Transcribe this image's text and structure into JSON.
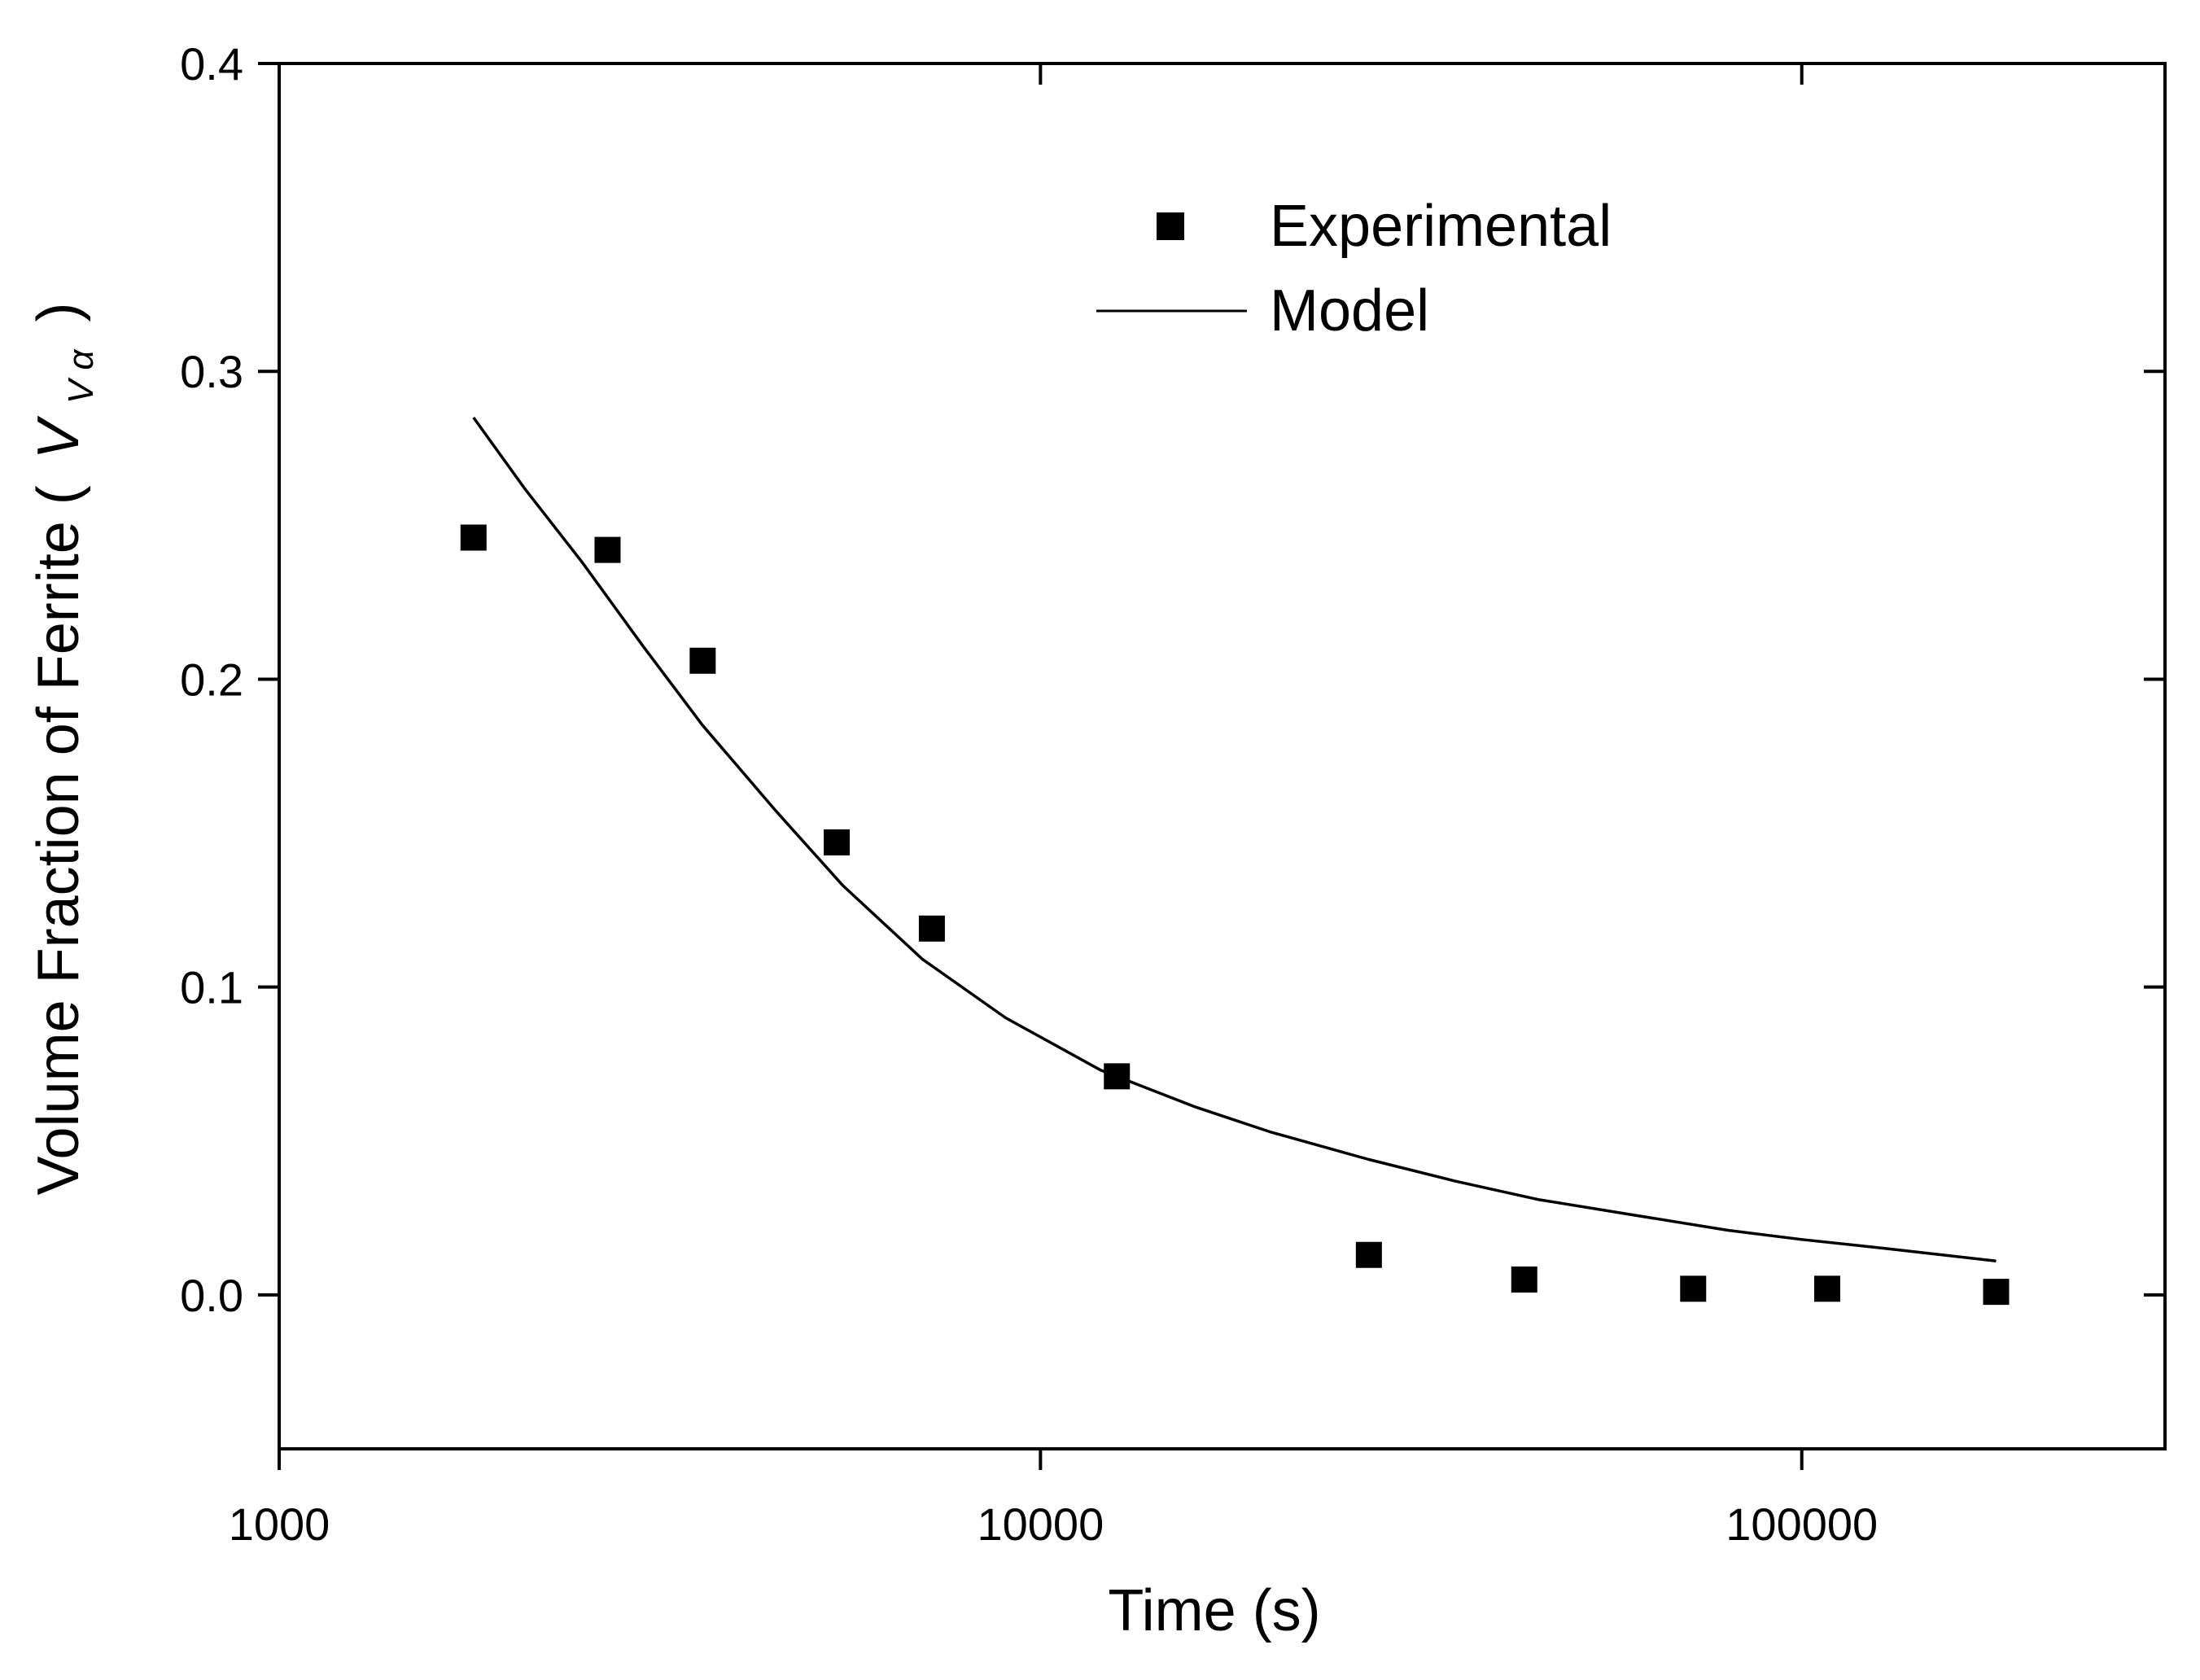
{
  "chart_data": {
    "type": "scatter",
    "title": "",
    "xlabel": "Time (s)",
    "ylabel": {
      "main": "Volume Fraction of Ferrite (",
      "symbol": "V",
      "subscript": "V α",
      "close": ")"
    },
    "x_scale": "log",
    "xlim": [
      1000,
      300000
    ],
    "ylim": [
      -0.05,
      0.4
    ],
    "x_ticks": [
      1000,
      10000,
      100000
    ],
    "x_tick_labels": [
      "1000",
      "10000",
      "100000"
    ],
    "y_ticks": [
      0.0,
      0.1,
      0.2,
      0.3,
      0.4
    ],
    "y_tick_labels": [
      "0.0",
      "0.1",
      "0.2",
      "0.3",
      "0.4"
    ],
    "grid": false,
    "legend_position": "top-center",
    "series": [
      {
        "name": "Experimental",
        "kind": "markers",
        "marker": "square",
        "x": [
          1800,
          2700,
          3600,
          5400,
          7200,
          12600,
          27000,
          43200,
          72000,
          108000,
          180000
        ],
        "y": [
          0.246,
          0.242,
          0.206,
          0.147,
          0.119,
          0.071,
          0.013,
          0.005,
          0.002,
          0.002,
          0.001
        ]
      },
      {
        "name": "Model",
        "kind": "line",
        "x": [
          1800,
          2100,
          2500,
          3000,
          3600,
          4500,
          5500,
          7000,
          9000,
          12000,
          16000,
          20000,
          27000,
          35000,
          45000,
          60000,
          80000,
          100000,
          130000,
          180000
        ],
        "y": [
          0.285,
          0.262,
          0.238,
          0.211,
          0.185,
          0.157,
          0.133,
          0.109,
          0.09,
          0.073,
          0.061,
          0.053,
          0.044,
          0.037,
          0.031,
          0.026,
          0.021,
          0.018,
          0.015,
          0.011
        ]
      }
    ]
  },
  "colors": {
    "ink": "#000000",
    "background": "#ffffff"
  }
}
